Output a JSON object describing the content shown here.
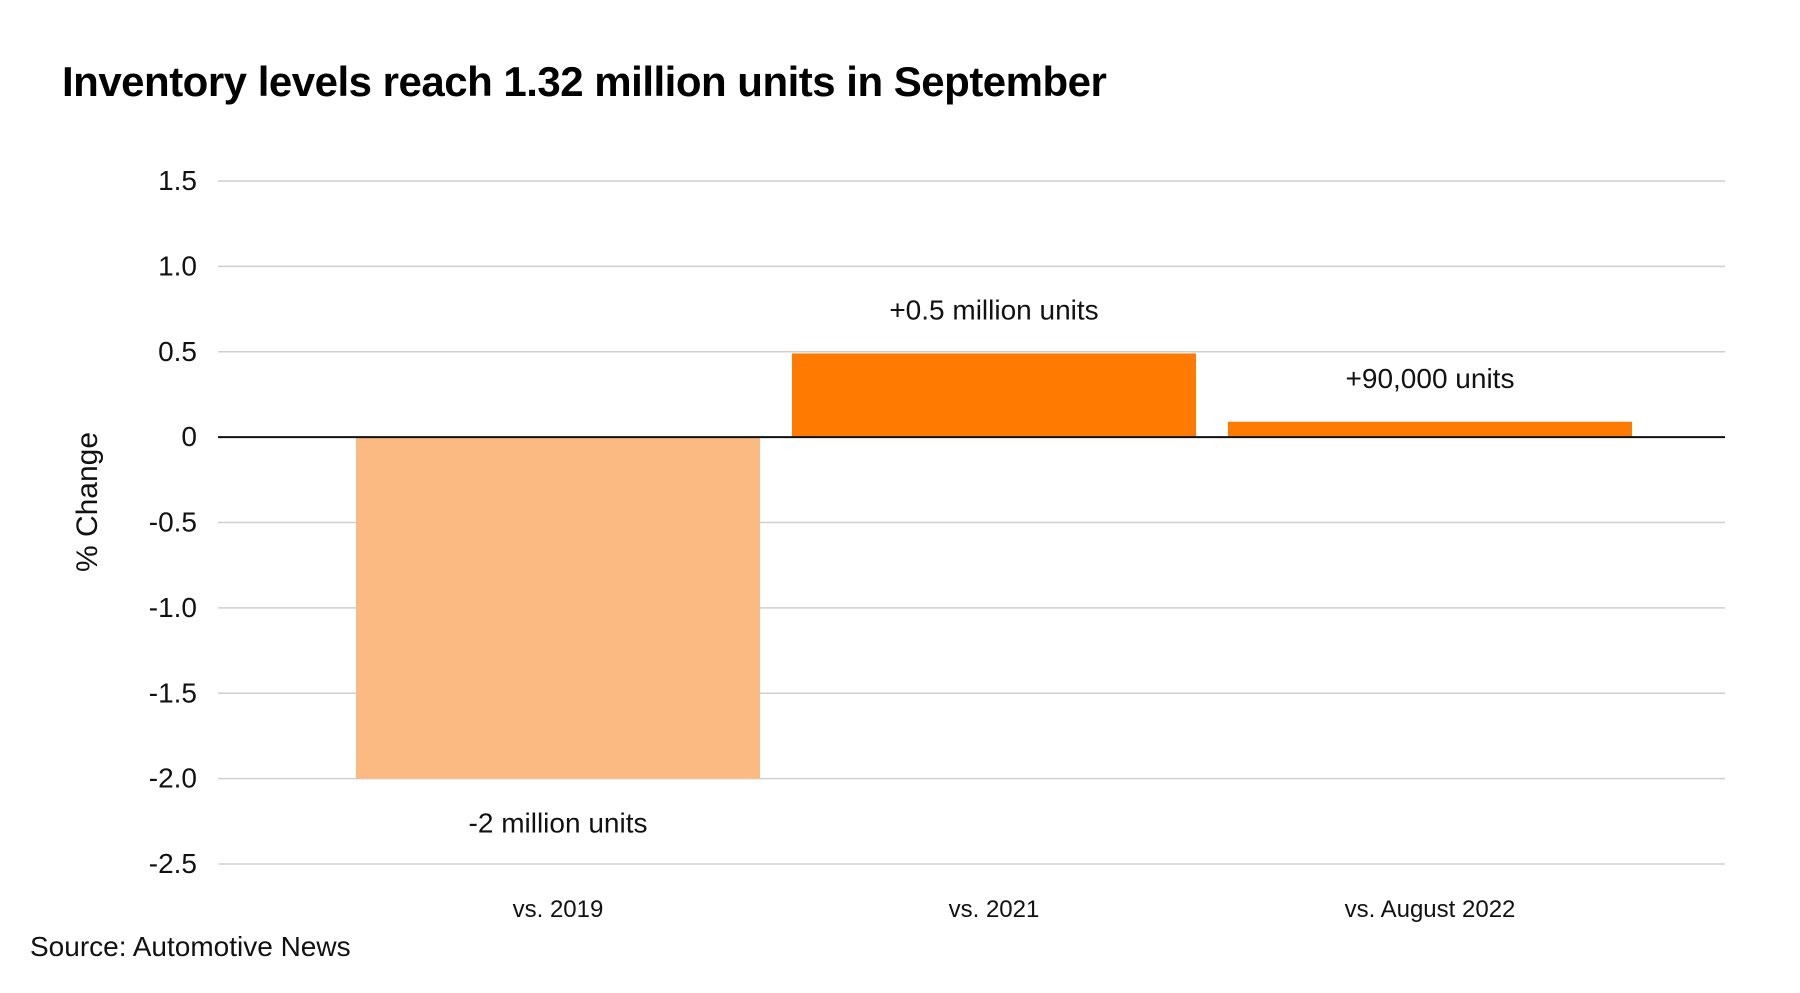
{
  "chart_data": {
    "type": "bar",
    "title": "Inventory levels reach 1.32 million units in September",
    "ylabel": "% Change",
    "xlabel": "",
    "categories": [
      "vs. 2019",
      "vs. 2021",
      "vs. August 2022"
    ],
    "values": [
      -2.0,
      0.49,
      0.09
    ],
    "data_labels": [
      "-2 million units",
      "+0.5 million units",
      "+90,000 units"
    ],
    "bar_colors": [
      "#FBBA82",
      "#FF7A00",
      "#FF7A00"
    ],
    "yticks": [
      1.5,
      1.0,
      0.5,
      0,
      -0.5,
      -1.0,
      -1.5,
      -2.0,
      -2.5
    ],
    "ytick_labels": [
      "1.5",
      "1.0",
      "0.5",
      "0",
      "-0.5",
      "-1.0",
      "-1.5",
      "-2.0",
      "-2.5"
    ],
    "ylim": [
      -2.5,
      1.5
    ],
    "grid": true,
    "legend": "none",
    "source": "Source: Automotive News"
  }
}
